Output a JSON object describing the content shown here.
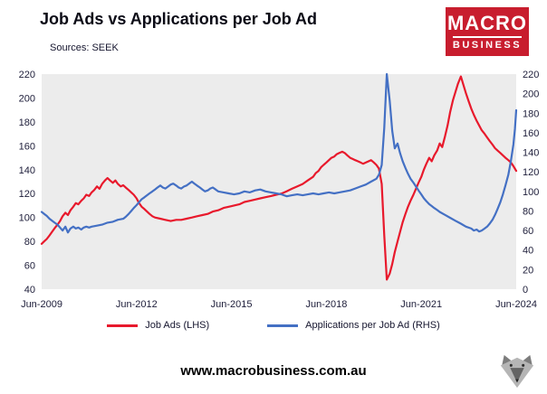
{
  "logo": {
    "line1": "MACRO",
    "line2": "BUSINESS",
    "bg_color": "#c81d2e"
  },
  "footer": {
    "url": "www.macrobusiness.com.au"
  },
  "chart_data": {
    "type": "line",
    "title": "Job Ads vs Applications per Job Ad",
    "source_note": "Sources: SEEK",
    "legend_position": "bottom",
    "plot_bg": "#ececec",
    "x_ticks": [
      "Jun-2009",
      "Jun-2012",
      "Jun-2015",
      "Jun-2018",
      "Jun-2021",
      "Jun-2024"
    ],
    "x_tick_values": [
      2009.42,
      2012.42,
      2015.42,
      2018.42,
      2021.42,
      2024.42
    ],
    "x_range": [
      2009.42,
      2024.42
    ],
    "left_axis": {
      "min": 40,
      "max": 220,
      "step": 20
    },
    "right_axis": {
      "min": 0,
      "max": 220,
      "step": 20
    },
    "series": [
      {
        "name": "Job Ads (LHS)",
        "axis": "left",
        "color": "#e8192c",
        "points": [
          [
            2009.42,
            78
          ],
          [
            2009.5,
            80
          ],
          [
            2009.58,
            82
          ],
          [
            2009.67,
            85
          ],
          [
            2009.75,
            88
          ],
          [
            2009.83,
            91
          ],
          [
            2009.92,
            94
          ],
          [
            2010.0,
            97
          ],
          [
            2010.08,
            101
          ],
          [
            2010.17,
            104
          ],
          [
            2010.25,
            102
          ],
          [
            2010.33,
            106
          ],
          [
            2010.42,
            109
          ],
          [
            2010.5,
            112
          ],
          [
            2010.58,
            111
          ],
          [
            2010.67,
            114
          ],
          [
            2010.75,
            116
          ],
          [
            2010.83,
            119
          ],
          [
            2010.92,
            118
          ],
          [
            2011.0,
            121
          ],
          [
            2011.08,
            123
          ],
          [
            2011.17,
            126
          ],
          [
            2011.25,
            124
          ],
          [
            2011.33,
            128
          ],
          [
            2011.42,
            131
          ],
          [
            2011.5,
            133
          ],
          [
            2011.58,
            131
          ],
          [
            2011.67,
            129
          ],
          [
            2011.75,
            131
          ],
          [
            2011.83,
            128
          ],
          [
            2011.92,
            126
          ],
          [
            2012.0,
            127
          ],
          [
            2012.08,
            125
          ],
          [
            2012.17,
            123
          ],
          [
            2012.25,
            121
          ],
          [
            2012.33,
            119
          ],
          [
            2012.42,
            116
          ],
          [
            2012.5,
            112
          ],
          [
            2012.58,
            109
          ],
          [
            2012.67,
            107
          ],
          [
            2012.75,
            105
          ],
          [
            2012.83,
            103
          ],
          [
            2012.92,
            101
          ],
          [
            2013.0,
            100
          ],
          [
            2013.17,
            99
          ],
          [
            2013.33,
            98
          ],
          [
            2013.5,
            97
          ],
          [
            2013.67,
            98
          ],
          [
            2013.83,
            98
          ],
          [
            2014.0,
            99
          ],
          [
            2014.17,
            100
          ],
          [
            2014.33,
            101
          ],
          [
            2014.5,
            102
          ],
          [
            2014.67,
            103
          ],
          [
            2014.83,
            105
          ],
          [
            2015.0,
            106
          ],
          [
            2015.17,
            108
          ],
          [
            2015.33,
            109
          ],
          [
            2015.5,
            110
          ],
          [
            2015.67,
            111
          ],
          [
            2015.83,
            113
          ],
          [
            2016.0,
            114
          ],
          [
            2016.17,
            115
          ],
          [
            2016.33,
            116
          ],
          [
            2016.5,
            117
          ],
          [
            2016.67,
            118
          ],
          [
            2016.83,
            119
          ],
          [
            2017.0,
            120
          ],
          [
            2017.17,
            122
          ],
          [
            2017.33,
            124
          ],
          [
            2017.5,
            126
          ],
          [
            2017.67,
            128
          ],
          [
            2017.83,
            131
          ],
          [
            2018.0,
            134
          ],
          [
            2018.08,
            137
          ],
          [
            2018.17,
            139
          ],
          [
            2018.25,
            142
          ],
          [
            2018.33,
            144
          ],
          [
            2018.42,
            146
          ],
          [
            2018.5,
            148
          ],
          [
            2018.58,
            150
          ],
          [
            2018.67,
            151
          ],
          [
            2018.75,
            153
          ],
          [
            2018.83,
            154
          ],
          [
            2018.92,
            155
          ],
          [
            2019.0,
            154
          ],
          [
            2019.08,
            152
          ],
          [
            2019.17,
            150
          ],
          [
            2019.25,
            149
          ],
          [
            2019.33,
            148
          ],
          [
            2019.42,
            147
          ],
          [
            2019.5,
            146
          ],
          [
            2019.58,
            145
          ],
          [
            2019.67,
            146
          ],
          [
            2019.75,
            147
          ],
          [
            2019.83,
            148
          ],
          [
            2019.92,
            146
          ],
          [
            2020.0,
            144
          ],
          [
            2020.08,
            141
          ],
          [
            2020.17,
            128
          ],
          [
            2020.25,
            85
          ],
          [
            2020.33,
            48
          ],
          [
            2020.42,
            53
          ],
          [
            2020.5,
            61
          ],
          [
            2020.58,
            71
          ],
          [
            2020.67,
            80
          ],
          [
            2020.75,
            88
          ],
          [
            2020.83,
            96
          ],
          [
            2020.92,
            103
          ],
          [
            2021.0,
            109
          ],
          [
            2021.08,
            114
          ],
          [
            2021.17,
            119
          ],
          [
            2021.25,
            124
          ],
          [
            2021.33,
            129
          ],
          [
            2021.42,
            134
          ],
          [
            2021.5,
            140
          ],
          [
            2021.58,
            145
          ],
          [
            2021.67,
            150
          ],
          [
            2021.75,
            147
          ],
          [
            2021.83,
            152
          ],
          [
            2021.92,
            156
          ],
          [
            2022.0,
            162
          ],
          [
            2022.08,
            159
          ],
          [
            2022.17,
            168
          ],
          [
            2022.25,
            177
          ],
          [
            2022.33,
            188
          ],
          [
            2022.42,
            198
          ],
          [
            2022.5,
            205
          ],
          [
            2022.58,
            212
          ],
          [
            2022.67,
            218
          ],
          [
            2022.75,
            211
          ],
          [
            2022.83,
            204
          ],
          [
            2022.92,
            197
          ],
          [
            2023.0,
            191
          ],
          [
            2023.08,
            186
          ],
          [
            2023.17,
            181
          ],
          [
            2023.25,
            177
          ],
          [
            2023.33,
            173
          ],
          [
            2023.42,
            170
          ],
          [
            2023.5,
            167
          ],
          [
            2023.58,
            164
          ],
          [
            2023.67,
            161
          ],
          [
            2023.75,
            158
          ],
          [
            2023.83,
            156
          ],
          [
            2023.92,
            154
          ],
          [
            2024.0,
            152
          ],
          [
            2024.08,
            150
          ],
          [
            2024.17,
            148
          ],
          [
            2024.25,
            146
          ],
          [
            2024.33,
            143
          ],
          [
            2024.42,
            139
          ]
        ]
      },
      {
        "name": "Applications per Job Ad (RHS)",
        "axis": "right",
        "color": "#4470c4",
        "points": [
          [
            2009.42,
            79
          ],
          [
            2009.5,
            77
          ],
          [
            2009.58,
            75
          ],
          [
            2009.67,
            72
          ],
          [
            2009.75,
            70
          ],
          [
            2009.83,
            68
          ],
          [
            2009.92,
            66
          ],
          [
            2010.0,
            63
          ],
          [
            2010.08,
            60
          ],
          [
            2010.17,
            64
          ],
          [
            2010.25,
            58
          ],
          [
            2010.33,
            62
          ],
          [
            2010.42,
            64
          ],
          [
            2010.5,
            62
          ],
          [
            2010.58,
            63
          ],
          [
            2010.67,
            61
          ],
          [
            2010.75,
            63
          ],
          [
            2010.83,
            64
          ],
          [
            2010.92,
            63
          ],
          [
            2011.0,
            64
          ],
          [
            2011.17,
            65
          ],
          [
            2011.33,
            66
          ],
          [
            2011.5,
            68
          ],
          [
            2011.67,
            69
          ],
          [
            2011.83,
            71
          ],
          [
            2012.0,
            72
          ],
          [
            2012.08,
            74
          ],
          [
            2012.17,
            77
          ],
          [
            2012.25,
            80
          ],
          [
            2012.33,
            83
          ],
          [
            2012.42,
            86
          ],
          [
            2012.5,
            89
          ],
          [
            2012.58,
            92
          ],
          [
            2012.67,
            94
          ],
          [
            2012.75,
            96
          ],
          [
            2012.83,
            98
          ],
          [
            2012.92,
            100
          ],
          [
            2013.0,
            102
          ],
          [
            2013.08,
            104
          ],
          [
            2013.17,
            106
          ],
          [
            2013.25,
            104
          ],
          [
            2013.33,
            103
          ],
          [
            2013.42,
            105
          ],
          [
            2013.5,
            107
          ],
          [
            2013.58,
            108
          ],
          [
            2013.67,
            106
          ],
          [
            2013.75,
            104
          ],
          [
            2013.83,
            103
          ],
          [
            2013.92,
            105
          ],
          [
            2014.0,
            106
          ],
          [
            2014.08,
            108
          ],
          [
            2014.17,
            110
          ],
          [
            2014.25,
            108
          ],
          [
            2014.33,
            106
          ],
          [
            2014.42,
            104
          ],
          [
            2014.5,
            102
          ],
          [
            2014.58,
            100
          ],
          [
            2014.67,
            101
          ],
          [
            2014.75,
            103
          ],
          [
            2014.83,
            104
          ],
          [
            2014.92,
            102
          ],
          [
            2015.0,
            100
          ],
          [
            2015.17,
            99
          ],
          [
            2015.33,
            98
          ],
          [
            2015.5,
            97
          ],
          [
            2015.67,
            98
          ],
          [
            2015.83,
            100
          ],
          [
            2016.0,
            99
          ],
          [
            2016.17,
            101
          ],
          [
            2016.33,
            102
          ],
          [
            2016.5,
            100
          ],
          [
            2016.67,
            99
          ],
          [
            2016.83,
            98
          ],
          [
            2017.0,
            97
          ],
          [
            2017.17,
            95
          ],
          [
            2017.33,
            96
          ],
          [
            2017.5,
            97
          ],
          [
            2017.67,
            96
          ],
          [
            2017.83,
            97
          ],
          [
            2018.0,
            98
          ],
          [
            2018.17,
            97
          ],
          [
            2018.33,
            98
          ],
          [
            2018.5,
            99
          ],
          [
            2018.67,
            98
          ],
          [
            2018.83,
            99
          ],
          [
            2019.0,
            100
          ],
          [
            2019.17,
            101
          ],
          [
            2019.33,
            103
          ],
          [
            2019.5,
            105
          ],
          [
            2019.67,
            107
          ],
          [
            2019.83,
            110
          ],
          [
            2020.0,
            113
          ],
          [
            2020.08,
            117
          ],
          [
            2020.17,
            127
          ],
          [
            2020.25,
            165
          ],
          [
            2020.33,
            220
          ],
          [
            2020.42,
            193
          ],
          [
            2020.5,
            162
          ],
          [
            2020.58,
            144
          ],
          [
            2020.67,
            149
          ],
          [
            2020.75,
            139
          ],
          [
            2020.83,
            131
          ],
          [
            2020.92,
            124
          ],
          [
            2021.0,
            118
          ],
          [
            2021.08,
            113
          ],
          [
            2021.17,
            109
          ],
          [
            2021.25,
            105
          ],
          [
            2021.33,
            101
          ],
          [
            2021.42,
            97
          ],
          [
            2021.5,
            93
          ],
          [
            2021.58,
            90
          ],
          [
            2021.67,
            87
          ],
          [
            2021.75,
            85
          ],
          [
            2021.83,
            83
          ],
          [
            2021.92,
            81
          ],
          [
            2022.0,
            79
          ],
          [
            2022.17,
            76
          ],
          [
            2022.33,
            73
          ],
          [
            2022.5,
            70
          ],
          [
            2022.67,
            67
          ],
          [
            2022.83,
            64
          ],
          [
            2023.0,
            62
          ],
          [
            2023.08,
            60
          ],
          [
            2023.17,
            61
          ],
          [
            2023.25,
            59
          ],
          [
            2023.33,
            60
          ],
          [
            2023.42,
            62
          ],
          [
            2023.5,
            64
          ],
          [
            2023.58,
            67
          ],
          [
            2023.67,
            71
          ],
          [
            2023.75,
            76
          ],
          [
            2023.83,
            82
          ],
          [
            2023.92,
            89
          ],
          [
            2024.0,
            97
          ],
          [
            2024.08,
            106
          ],
          [
            2024.17,
            117
          ],
          [
            2024.25,
            131
          ],
          [
            2024.33,
            148
          ],
          [
            2024.38,
            164
          ],
          [
            2024.42,
            183
          ]
        ]
      }
    ]
  }
}
